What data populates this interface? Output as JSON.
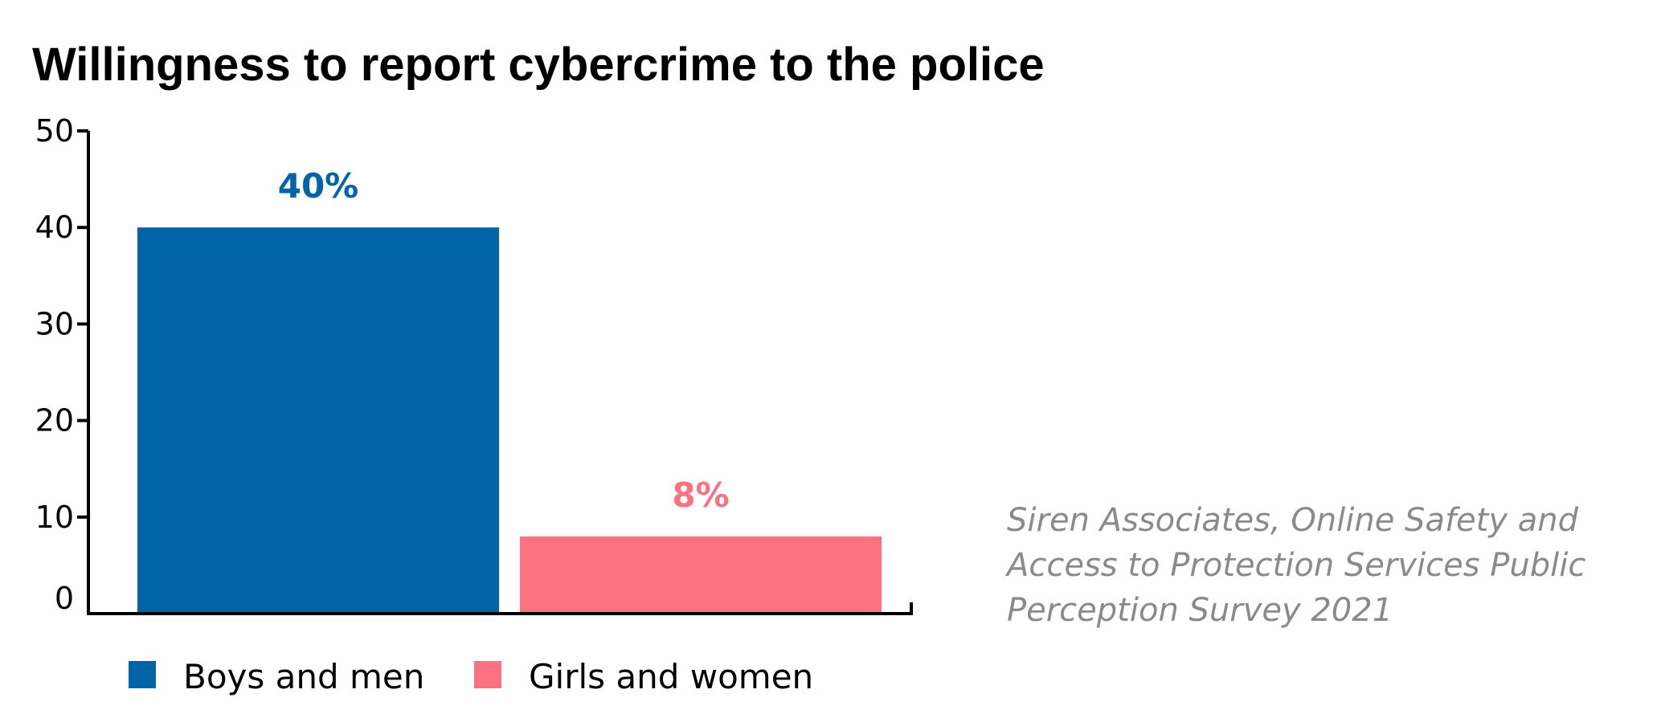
{
  "chart_data": {
    "type": "bar",
    "title": "Willingness to report cybercrime to the police",
    "categories": [
      "Boys and men",
      "Girls and women"
    ],
    "values": [
      40,
      8
    ],
    "data_labels": [
      "40%",
      "8%"
    ],
    "colors": [
      "#0064a7",
      "#fa7282"
    ],
    "ylim": [
      0,
      50
    ],
    "yticks": [
      0,
      10,
      20,
      30,
      40,
      50
    ],
    "xlabel": "",
    "ylabel": "",
    "grid": false,
    "legend": {
      "placement": "bottom",
      "entries": [
        "Boys and men",
        "Girls and women"
      ]
    },
    "source_note": [
      "Siren Associates, Online Safety and",
      "Access to Protection Services Public",
      "Perception Survey 2021"
    ]
  }
}
